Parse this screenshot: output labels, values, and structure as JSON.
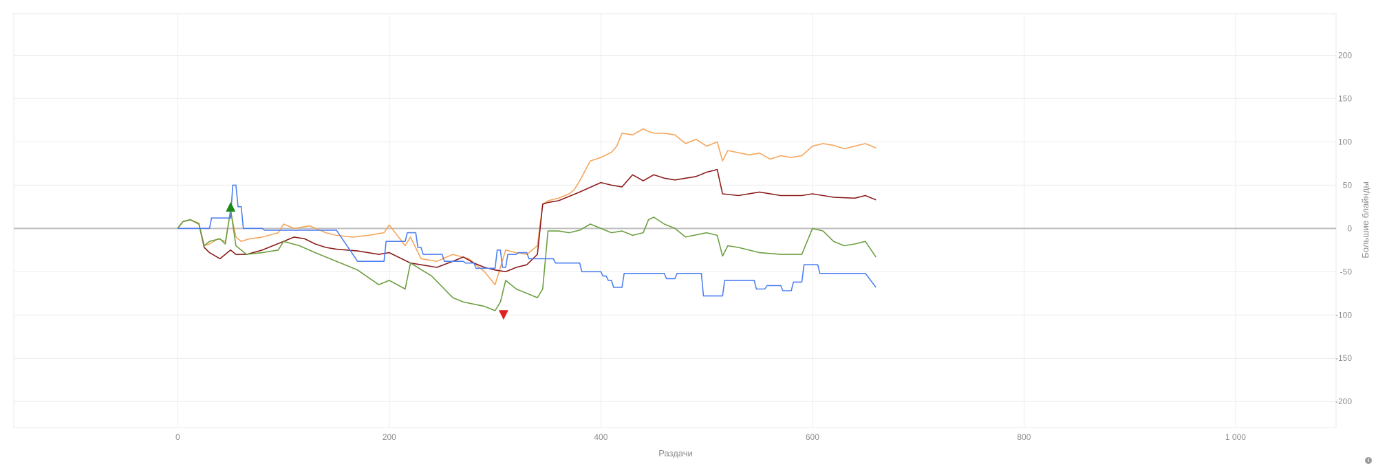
{
  "chart_data": {
    "type": "line",
    "xlabel": "Раздачи",
    "ylabel": "Большие блайнды",
    "xlim": [
      -155,
      1095
    ],
    "ylim": [
      -230,
      248
    ],
    "x_ticks": [
      0,
      200,
      400,
      600,
      800,
      1000
    ],
    "x_tick_labels": [
      "0",
      "200",
      "400",
      "600",
      "800",
      "1 000"
    ],
    "y_ticks": [
      200,
      150,
      100,
      50,
      0,
      -50,
      -100,
      -150,
      -200
    ],
    "y_tick_labels": [
      "200",
      "150",
      "100",
      "50",
      "0",
      "-50",
      "-100",
      "-150",
      "-200"
    ],
    "grid": true,
    "legend": "none",
    "series": [
      {
        "color": "#f5a55a",
        "x": [
          0,
          5,
          12,
          20,
          25,
          30,
          38,
          45,
          50,
          55,
          60,
          68,
          80,
          95,
          100,
          110,
          125,
          140,
          150,
          165,
          180,
          195,
          200,
          215,
          220,
          230,
          245,
          260,
          275,
          290,
          300,
          310,
          320,
          330,
          340,
          345,
          350,
          360,
          370,
          375,
          380,
          390,
          400,
          410,
          415,
          420,
          430,
          440,
          445,
          450,
          460,
          470,
          480,
          490,
          500,
          510,
          515,
          520,
          540,
          550,
          560,
          570,
          580,
          590,
          600,
          610,
          620,
          630,
          640,
          650,
          660
        ],
        "y": [
          0,
          8,
          10,
          6,
          -20,
          -18,
          -12,
          -15,
          20,
          -10,
          -15,
          -12,
          -10,
          -5,
          5,
          0,
          3,
          -5,
          -8,
          -10,
          -8,
          -5,
          4,
          -20,
          -10,
          -35,
          -38,
          -30,
          -35,
          -50,
          -65,
          -25,
          -28,
          -30,
          -20,
          28,
          32,
          35,
          40,
          45,
          55,
          78,
          82,
          88,
          95,
          110,
          108,
          115,
          112,
          110,
          110,
          108,
          98,
          103,
          95,
          100,
          78,
          90,
          85,
          87,
          80,
          84,
          82,
          84,
          95,
          98,
          96,
          92,
          95,
          98,
          93
        ]
      },
      {
        "color": "#8b1a1a",
        "x": [
          0,
          5,
          12,
          20,
          25,
          30,
          40,
          50,
          55,
          65,
          80,
          90,
          100,
          110,
          120,
          130,
          140,
          150,
          170,
          190,
          200,
          220,
          230,
          245,
          260,
          270,
          280,
          290,
          300,
          310,
          320,
          330,
          340,
          345,
          350,
          360,
          380,
          400,
          410,
          420,
          430,
          440,
          450,
          460,
          470,
          490,
          500,
          510,
          515,
          530,
          550,
          570,
          590,
          600,
          610,
          620,
          640,
          650,
          660
        ],
        "y": [
          0,
          8,
          10,
          5,
          -22,
          -28,
          -35,
          -25,
          -30,
          -30,
          -25,
          -20,
          -15,
          -10,
          -12,
          -18,
          -22,
          -24,
          -26,
          -30,
          -28,
          -40,
          -42,
          -45,
          -38,
          -33,
          -40,
          -45,
          -48,
          -50,
          -45,
          -42,
          -30,
          28,
          30,
          32,
          42,
          53,
          50,
          48,
          62,
          55,
          62,
          58,
          56,
          60,
          65,
          68,
          40,
          38,
          42,
          38,
          38,
          40,
          38,
          36,
          35,
          38,
          33
        ]
      },
      {
        "color": "#6b9e40",
        "x": [
          0,
          5,
          12,
          20,
          25,
          30,
          40,
          45,
          50,
          55,
          65,
          80,
          95,
          100,
          115,
          130,
          150,
          170,
          190,
          200,
          215,
          220,
          240,
          260,
          270,
          290,
          300,
          305,
          310,
          320,
          330,
          340,
          345,
          350,
          360,
          370,
          380,
          390,
          400,
          410,
          420,
          430,
          440,
          445,
          450,
          460,
          470,
          480,
          500,
          510,
          515,
          520,
          530,
          550,
          570,
          590,
          600,
          610,
          620,
          630,
          640,
          650,
          660
        ],
        "y": [
          0,
          8,
          10,
          5,
          -20,
          -15,
          -12,
          -18,
          22,
          -20,
          -30,
          -28,
          -25,
          -15,
          -20,
          -28,
          -38,
          -48,
          -65,
          -60,
          -70,
          -40,
          -55,
          -80,
          -85,
          -90,
          -95,
          -85,
          -60,
          -70,
          -75,
          -80,
          -70,
          -3,
          -3,
          -5,
          -2,
          5,
          0,
          -5,
          -3,
          -8,
          -5,
          10,
          13,
          5,
          0,
          -10,
          -5,
          -8,
          -32,
          -20,
          -22,
          -28,
          -30,
          -30,
          0,
          -3,
          -15,
          -20,
          -18,
          -15,
          -33
        ]
      },
      {
        "color": "#4d7ff0",
        "x": [
          0,
          30,
          32,
          50,
          52,
          55,
          57,
          60,
          62,
          80,
          82,
          150,
          170,
          195,
          197,
          215,
          217,
          225,
          227,
          230,
          232,
          250,
          252,
          270,
          272,
          280,
          282,
          300,
          302,
          305,
          307,
          310,
          312,
          320,
          322,
          330,
          332,
          355,
          357,
          380,
          382,
          400,
          402,
          405,
          407,
          410,
          412,
          420,
          422,
          460,
          462,
          470,
          472,
          495,
          497,
          515,
          517,
          545,
          547,
          555,
          557,
          570,
          572,
          580,
          582,
          590,
          592,
          605,
          607,
          650,
          652,
          660
        ],
        "y": [
          0,
          0,
          12,
          12,
          50,
          50,
          25,
          25,
          0,
          0,
          -2,
          -2,
          -38,
          -38,
          -15,
          -15,
          -5,
          -5,
          -22,
          -22,
          -30,
          -30,
          -38,
          -38,
          -40,
          -40,
          -46,
          -46,
          -25,
          -25,
          -45,
          -45,
          -30,
          -30,
          -28,
          -28,
          -35,
          -35,
          -40,
          -40,
          -50,
          -50,
          -55,
          -55,
          -60,
          -60,
          -68,
          -68,
          -52,
          -52,
          -58,
          -58,
          -52,
          -52,
          -78,
          -78,
          -60,
          -60,
          -70,
          -70,
          -66,
          -66,
          -72,
          -72,
          -62,
          -62,
          -42,
          -42,
          -52,
          -52,
          -55,
          -68
        ]
      }
    ],
    "markers": [
      {
        "type": "max",
        "x": 50,
        "y": 25,
        "color": "#1a8a1a"
      },
      {
        "type": "min",
        "x": 308,
        "y": -100,
        "color": "#e02020"
      }
    ]
  }
}
